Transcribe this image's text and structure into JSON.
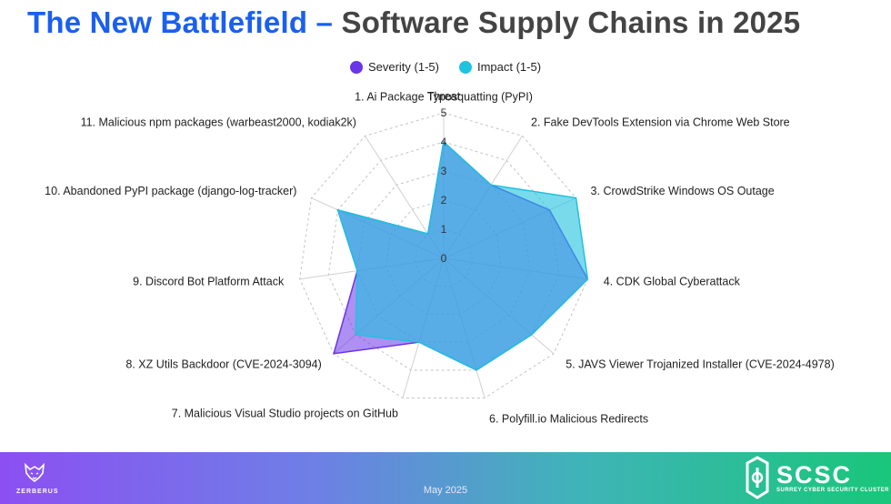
{
  "title": {
    "part1": "The New Battlefield",
    "dash": " – ",
    "part2": "Software Supply Chains in 2025"
  },
  "footer": {
    "date": "May 2025",
    "left_logo_text": "ZERBERUS",
    "right_logo_main": "SCSC",
    "right_logo_sub": "SURREY CYBER SECURITY CLUSTER"
  },
  "colors": {
    "severity": "#6a34e8",
    "impact": "#1fc2df",
    "title_blue": "#1a5ff0"
  },
  "chart_data": {
    "type": "radar",
    "axis_title": "Threat",
    "rlim": [
      0,
      5
    ],
    "ticks": [
      "0",
      "1",
      "2",
      "3",
      "4",
      "5"
    ],
    "categories": [
      "1. Ai Package Typosquatting (PyPI)",
      "2. Fake DevTools Extension via Chrome Web Store",
      "3. CrowdStrike Windows OS Outage",
      "4. CDK Global Cyberattack",
      "5. JAVS Viewer Trojanized Installer (CVE-2024-4978)",
      "6. Polyfill.io Malicious Redirects",
      "7. Malicious Visual Studio projects on GitHub",
      "8. XZ Utils Backdoor (CVE-2024-3094)",
      "9. Discord Bot Platform Attack",
      "10. Abandoned PyPI package (django-log-tracker)",
      "11. Malicious npm packages (warbeast2000, kodiak2k)"
    ],
    "center_label": "Threat",
    "series": [
      {
        "name": "Severity (1-5)",
        "values": [
          4,
          3,
          4,
          5,
          4,
          4,
          3,
          5,
          3,
          4,
          1
        ],
        "color": "#6a34e8"
      },
      {
        "name": "Impact (1-5)",
        "values": [
          4,
          3,
          5,
          5,
          4,
          4,
          3,
          4,
          3,
          4,
          1
        ],
        "color": "#1fc2df"
      }
    ],
    "legend": "top",
    "grid": true
  }
}
